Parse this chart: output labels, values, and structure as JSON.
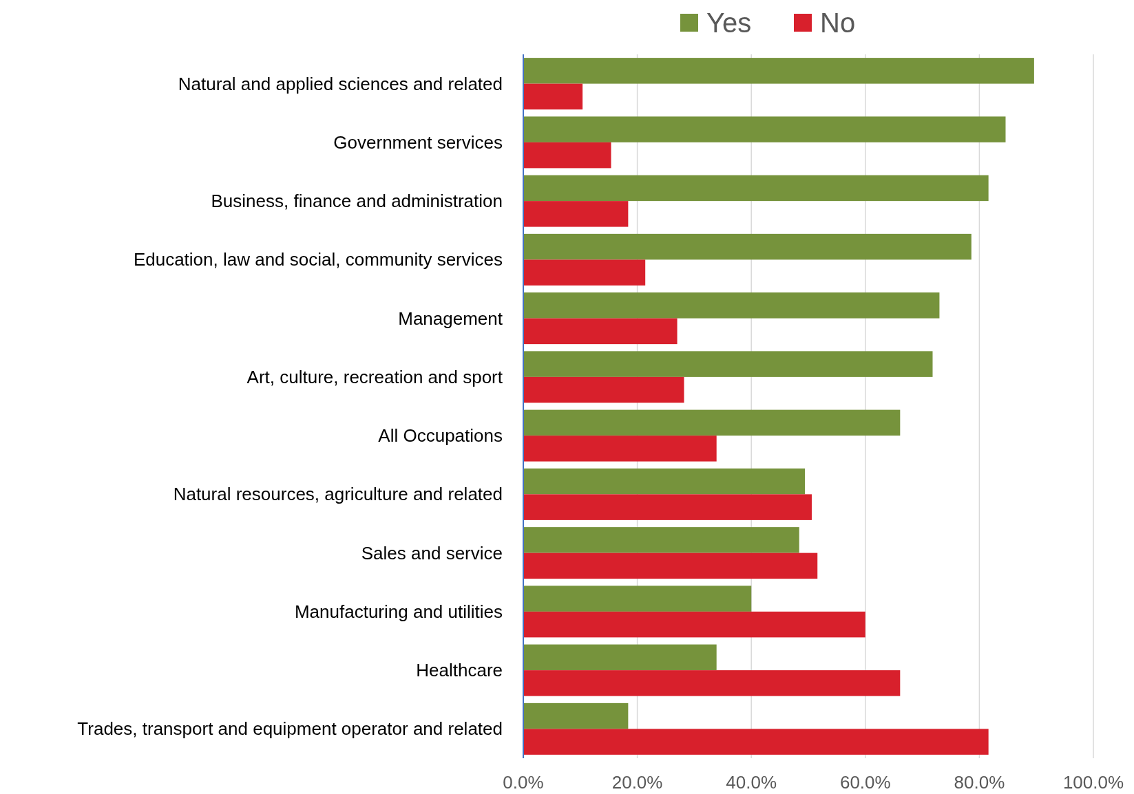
{
  "chart_data": {
    "type": "bar",
    "orientation": "horizontal",
    "categories": [
      "Natural and applied sciences and related",
      "Government services",
      "Business, finance and administration",
      "Education, law and social, community services",
      "Management",
      "Art, culture, recreation and sport",
      "All Occupations",
      "Natural resources, agriculture and related",
      "Sales and service",
      "Manufacturing and utilities",
      "Healthcare",
      "Trades, transport and equipment operator and related"
    ],
    "series": [
      {
        "name": "Yes",
        "color": "#76933c",
        "values": [
          89.6,
          84.6,
          81.6,
          78.6,
          73.0,
          71.8,
          66.1,
          49.4,
          48.4,
          40.0,
          33.9,
          18.4
        ]
      },
      {
        "name": "No",
        "color": "#d8202c",
        "values": [
          10.4,
          15.4,
          18.4,
          21.4,
          27.0,
          28.2,
          33.9,
          50.6,
          51.6,
          60.0,
          66.1,
          81.6
        ]
      }
    ],
    "xlim": [
      0,
      100
    ],
    "xticks": [
      {
        "value": 0,
        "label": "0.0%"
      },
      {
        "value": 20,
        "label": "20.0%"
      },
      {
        "value": 40,
        "label": "40.0%"
      },
      {
        "value": 60,
        "label": "60.0%"
      },
      {
        "value": 80,
        "label": "80.0%"
      },
      {
        "value": 100,
        "label": "100.0%"
      }
    ],
    "grid": "x",
    "legend": "top"
  }
}
